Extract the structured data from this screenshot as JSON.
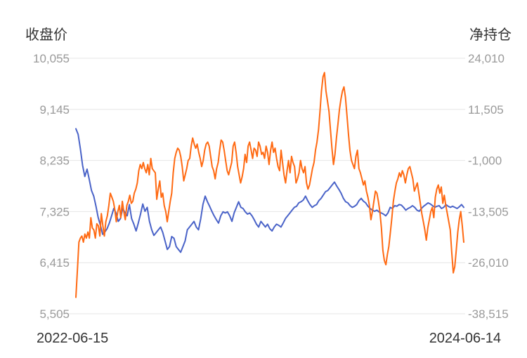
{
  "chart_data": {
    "type": "line",
    "left_axis_title": "收盘价",
    "right_axis_title": "净持仓",
    "left_ticks": [
      "10,055",
      "9,145",
      "8,235",
      "7,325",
      "6,415",
      "5,505"
    ],
    "right_ticks": [
      "24,010",
      "11,505",
      "-1,000",
      "-13,505",
      "-26,010",
      "-38,515"
    ],
    "left_ylim": [
      5505,
      10055
    ],
    "right_ylim": [
      -38515,
      24010
    ],
    "x_start_label": "2022-06-15",
    "x_end_label": "2024-06-14",
    "grid": true,
    "colors": {
      "close": "#4a63c8",
      "net": "#ff6a13"
    },
    "series": [
      {
        "key": "close",
        "axis": "left",
        "values": [
          8800,
          8700,
          8450,
          8150,
          7950,
          8080,
          7900,
          7700,
          7600,
          7420,
          7220,
          7080,
          6920,
          6960,
          7020,
          7120,
          7250,
          7380,
          7300,
          7150,
          7200,
          7380,
          7310,
          7250,
          7450,
          7200,
          7100,
          6980,
          7120,
          7280,
          7460,
          7330,
          7400,
          7150,
          7000,
          6900,
          6950,
          7000,
          7050,
          6950,
          6800,
          6650,
          6700,
          6880,
          6850,
          6700,
          6650,
          6600,
          6700,
          6800,
          7000,
          7050,
          7100,
          7150,
          7050,
          7000,
          7200,
          7450,
          7600,
          7500,
          7420,
          7330,
          7250,
          7180,
          7120,
          7250,
          7320,
          7300,
          7320,
          7250,
          7150,
          7300,
          7400,
          7500,
          7400,
          7380,
          7320,
          7280,
          7300,
          7250,
          7180,
          7100,
          7050,
          7150,
          7100,
          7050,
          7100,
          7020,
          6980,
          7050,
          7100,
          7080,
          7050,
          7120,
          7200,
          7250,
          7300,
          7350,
          7400,
          7420,
          7480,
          7500,
          7530,
          7600,
          7520,
          7450,
          7400,
          7430,
          7450,
          7520,
          7560,
          7620,
          7680,
          7700,
          7750,
          7800,
          7850,
          7780,
          7720,
          7650,
          7560,
          7500,
          7480,
          7430,
          7400,
          7420,
          7450,
          7520,
          7560,
          7510,
          7480,
          7420,
          7380,
          7350,
          7330,
          7350,
          7320,
          7300,
          7280,
          7250,
          7300,
          7400,
          7380,
          7430,
          7420,
          7450,
          7440,
          7400,
          7350,
          7380,
          7400,
          7430,
          7400,
          7350,
          7330,
          7380,
          7420,
          7450,
          7480,
          7460,
          7430,
          7400,
          7420,
          7430,
          7380,
          7400,
          7450,
          7420,
          7400,
          7420,
          7400,
          7380,
          7410,
          7450,
          7400
        ]
      },
      {
        "key": "net",
        "axis": "right",
        "values": [
          -34500,
          -28000,
          -21000,
          -20000,
          -19500,
          -21000,
          -19000,
          -20000,
          -18500,
          -20000,
          -15000,
          -17500,
          -18000,
          -20000,
          -16500,
          -17000,
          -19500,
          -14000,
          -17000,
          -19500,
          -16000,
          -14500,
          -12000,
          -9000,
          -10000,
          -11000,
          -13000,
          -16000,
          -13500,
          -12000,
          -15000,
          -11000,
          -13500,
          -15500,
          -12000,
          -11000,
          -9500,
          -11500,
          -11000,
          -9000,
          -8000,
          -6500,
          -3500,
          -2000,
          -3000,
          -1500,
          -3000,
          -4000,
          -2000,
          -4500,
          -500,
          -3000,
          -3500,
          -4000,
          -10500,
          -8000,
          -6000,
          -10000,
          -9000,
          -12000,
          -13500,
          -16000,
          -13500,
          -11000,
          -9000,
          -4000,
          -500,
          1000,
          2000,
          1500,
          0,
          -2500,
          -6000,
          -4500,
          -3000,
          -1000,
          -500,
          2500,
          4500,
          3000,
          2000,
          3000,
          1000,
          -500,
          -2500,
          -1000,
          1500,
          3000,
          3500,
          2500,
          0,
          -2500,
          -3500,
          -5500,
          -3000,
          -1500,
          1500,
          4000,
          3500,
          1500,
          -1000,
          -3500,
          -4500,
          -3000,
          -1500,
          2500,
          3500,
          1000,
          -2500,
          -4500,
          -6500,
          -5000,
          -3000,
          500,
          -1500,
          2500,
          3500,
          1500,
          -500,
          2000,
          1500,
          0,
          3500,
          2500,
          500,
          1000,
          -500,
          2500,
          1000,
          -2000,
          1500,
          3500,
          1000,
          2000,
          -500,
          -2500,
          -3500,
          1500,
          -1500,
          -4500,
          -6500,
          -3500,
          -1000,
          -4000,
          0,
          -1500,
          -2500,
          -6500,
          -5500,
          -4000,
          -1000,
          -3000,
          -4000,
          -2500,
          -6500,
          -8000,
          -7000,
          -5000,
          -3000,
          -1500,
          1500,
          3500,
          6500,
          11000,
          16000,
          19500,
          20500,
          16000,
          13500,
          11000,
          6500,
          2000,
          -2000,
          500,
          4500,
          8000,
          11500,
          14000,
          16000,
          17000,
          14500,
          10000,
          5500,
          1500,
          -1000,
          -2000,
          -3000,
          0,
          1500,
          -3000,
          -4000,
          -5500,
          -7000,
          -6000,
          -8500,
          -10000,
          -12000,
          -15500,
          -13500,
          -11000,
          -8500,
          -9000,
          -11000,
          -13500,
          -17500,
          -23000,
          -25500,
          -26500,
          -24000,
          -22000,
          -18500,
          -15000,
          -11000,
          -8500,
          -6500,
          -5500,
          -4000,
          -5000,
          -3500,
          -4500,
          -6500,
          -4500,
          -3000,
          -2500,
          -4000,
          -5500,
          -8500,
          -7500,
          -6500,
          -9000,
          -11500,
          -14000,
          -16000,
          -18000,
          -20500,
          -17500,
          -15500,
          -13500,
          -12500,
          -15000,
          -10000,
          -8000,
          -7000,
          -9000,
          -7500,
          -11500,
          -9500,
          -12000,
          -14000,
          -16000,
          -18000,
          -23500,
          -28500,
          -27000,
          -23000,
          -18500,
          -15500,
          -13500,
          -17000,
          -21000
        ]
      }
    ]
  }
}
